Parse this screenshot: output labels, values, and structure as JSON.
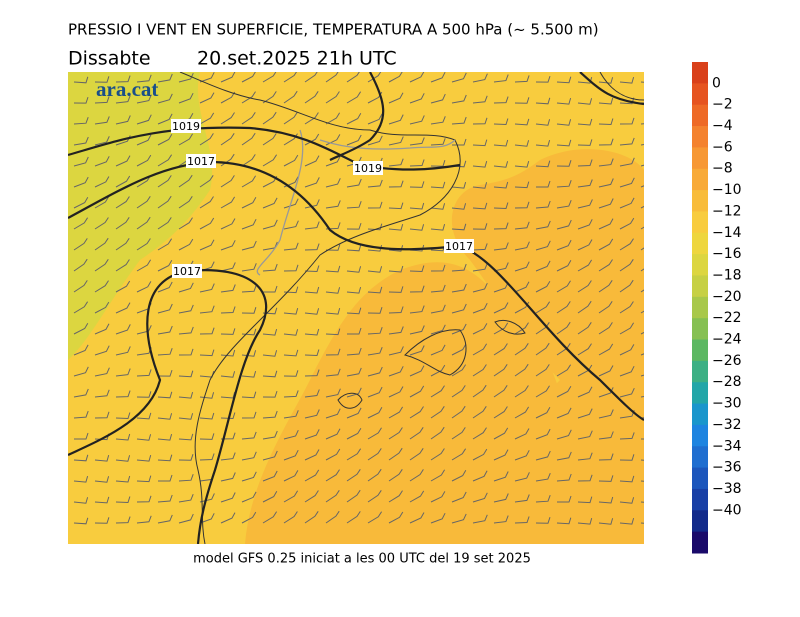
{
  "header": {
    "title": "PRESSIO I VENT EN SUPERFICIE, TEMPERATURA A 500 hPa (~ 5.500 m)",
    "day": "Dissabte",
    "date": "20.set.2025 21h UTC"
  },
  "logo": "ara.cat",
  "isobar_labels": [
    "1019",
    "1019",
    "1017",
    "1017",
    "1017"
  ],
  "footer": "model GFS 0.25 iniciat a les 00 UTC del 19 set 2025",
  "colorbar": {
    "labels": [
      "0",
      "−2",
      "−4",
      "−6",
      "−8",
      "−10",
      "−12",
      "−14",
      "−16",
      "−18",
      "−20",
      "−22",
      "−24",
      "−26",
      "−28",
      "−30",
      "−32",
      "−34",
      "−36",
      "−38",
      "−40"
    ],
    "colors": [
      "#d9401a",
      "#e65420",
      "#ee6a26",
      "#f4822e",
      "#f79834",
      "#f8aa38",
      "#f8bc3a",
      "#f8cc3e",
      "#eed63e",
      "#dcd640",
      "#c6d044",
      "#a8c84a",
      "#86c052",
      "#5cb862",
      "#3cb084",
      "#22a6a8",
      "#1a96cc",
      "#1e84e0",
      "#1f6ed0",
      "#1c56bc",
      "#1840a6",
      "#122a8a",
      "#1a0a6a"
    ]
  }
}
